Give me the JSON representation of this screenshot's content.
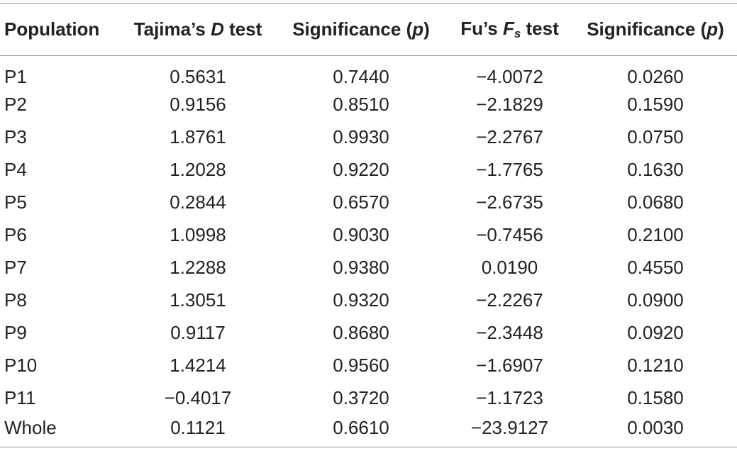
{
  "header": {
    "population": "Population",
    "tajima_prefix": "Tajima’s ",
    "tajima_var": "D",
    "tajima_suffix": " test",
    "sig1_prefix": "Significance (",
    "sig1_var": "p",
    "sig1_suffix": ")",
    "fu_prefix": "Fu’s ",
    "fu_var": "F",
    "fu_sub": "s",
    "fu_suffix": " test",
    "sig2_prefix": "Significance (",
    "sig2_var": "p",
    "sig2_suffix": ")"
  },
  "rows": [
    {
      "population": "P1",
      "tajima_d": "0.5631",
      "sig_d": "0.7440",
      "fu_fs": "−4.0072",
      "sig_fs": "0.0260"
    },
    {
      "population": "P2",
      "tajima_d": "0.9156",
      "sig_d": "0.8510",
      "fu_fs": "−2.1829",
      "sig_fs": "0.1590"
    },
    {
      "population": "P3",
      "tajima_d": "1.8761",
      "sig_d": "0.9930",
      "fu_fs": "−2.2767",
      "sig_fs": "0.0750"
    },
    {
      "population": "P4",
      "tajima_d": "1.2028",
      "sig_d": "0.9220",
      "fu_fs": "−1.7765",
      "sig_fs": "0.1630"
    },
    {
      "population": "P5",
      "tajima_d": "0.2844",
      "sig_d": "0.6570",
      "fu_fs": "−2.6735",
      "sig_fs": "0.0680"
    },
    {
      "population": "P6",
      "tajima_d": "1.0998",
      "sig_d": "0.9030",
      "fu_fs": "−0.7456",
      "sig_fs": "0.2100"
    },
    {
      "population": "P7",
      "tajima_d": "1.2288",
      "sig_d": "0.9380",
      "fu_fs": "0.0190",
      "sig_fs": "0.4550"
    },
    {
      "population": "P8",
      "tajima_d": "1.3051",
      "sig_d": "0.9320",
      "fu_fs": "−2.2267",
      "sig_fs": "0.0900"
    },
    {
      "population": "P9",
      "tajima_d": "0.9117",
      "sig_d": "0.8680",
      "fu_fs": "−2.3448",
      "sig_fs": "0.0920"
    },
    {
      "population": "P10",
      "tajima_d": "1.4214",
      "sig_d": "0.9560",
      "fu_fs": "−1.6907",
      "sig_fs": "0.1210"
    },
    {
      "population": "P11",
      "tajima_d": "−0.4017",
      "sig_d": "0.3720",
      "fu_fs": "−1.1723",
      "sig_fs": "0.1580"
    },
    {
      "population": "Whole",
      "tajima_d": "0.1121",
      "sig_d": "0.6610",
      "fu_fs": "−23.9127",
      "sig_fs": "0.0030"
    }
  ]
}
